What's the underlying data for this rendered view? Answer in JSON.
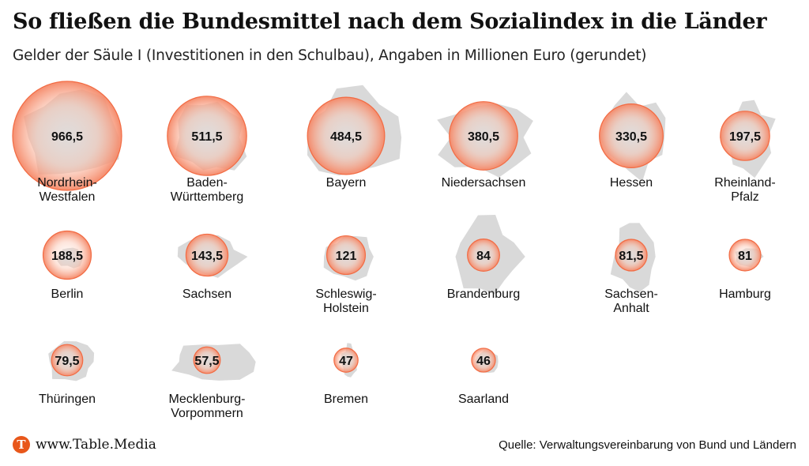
{
  "title": "So fließen die Bundesmittel nach dem Sozialindex in die Länder",
  "subtitle": "Gelder der Säule I (Investitionen in den Schulbau), Angaben in Millionen Euro (gerundet)",
  "footer": {
    "logo_letter": "T",
    "brand": "www.Table.Media",
    "source": "Quelle: Verwaltungsvereinbarung von Bund und Ländern"
  },
  "colors": {
    "bubble_fill": "#f58766",
    "bubble_center": "#fde3da",
    "bubble_stroke": "#f26b43",
    "map_fill": "#d9d9d9"
  },
  "chart_data": {
    "type": "bubble",
    "unit": "Millionen Euro",
    "items": [
      {
        "label": "Nordrhein-Westfalen",
        "value": 966.5,
        "display": "966,5"
      },
      {
        "label": "Baden-Württemberg",
        "value": 511.5,
        "display": "511,5"
      },
      {
        "label": "Bayern",
        "value": 484.5,
        "display": "484,5"
      },
      {
        "label": "Niedersachsen",
        "value": 380.5,
        "display": "380,5"
      },
      {
        "label": "Hessen",
        "value": 330.5,
        "display": "330,5"
      },
      {
        "label": "Rheinland-Pfalz",
        "value": 197.5,
        "display": "197,5"
      },
      {
        "label": "Berlin",
        "value": 188.5,
        "display": "188,5"
      },
      {
        "label": "Sachsen",
        "value": 143.5,
        "display": "143,5"
      },
      {
        "label": "Schleswig-Holstein",
        "value": 121,
        "display": "121"
      },
      {
        "label": "Brandenburg",
        "value": 84,
        "display": "84"
      },
      {
        "label": "Sachsen-Anhalt",
        "value": 81.5,
        "display": "81,5"
      },
      {
        "label": "Hamburg",
        "value": 81,
        "display": "81"
      },
      {
        "label": "Thüringen",
        "value": 79.5,
        "display": "79,5"
      },
      {
        "label": "Mecklenburg-Vorpommern",
        "value": 57.5,
        "display": "57,5"
      },
      {
        "label": "Bremen",
        "value": 47,
        "display": "47"
      },
      {
        "label": "Saarland",
        "value": 46,
        "display": "46"
      }
    ]
  }
}
